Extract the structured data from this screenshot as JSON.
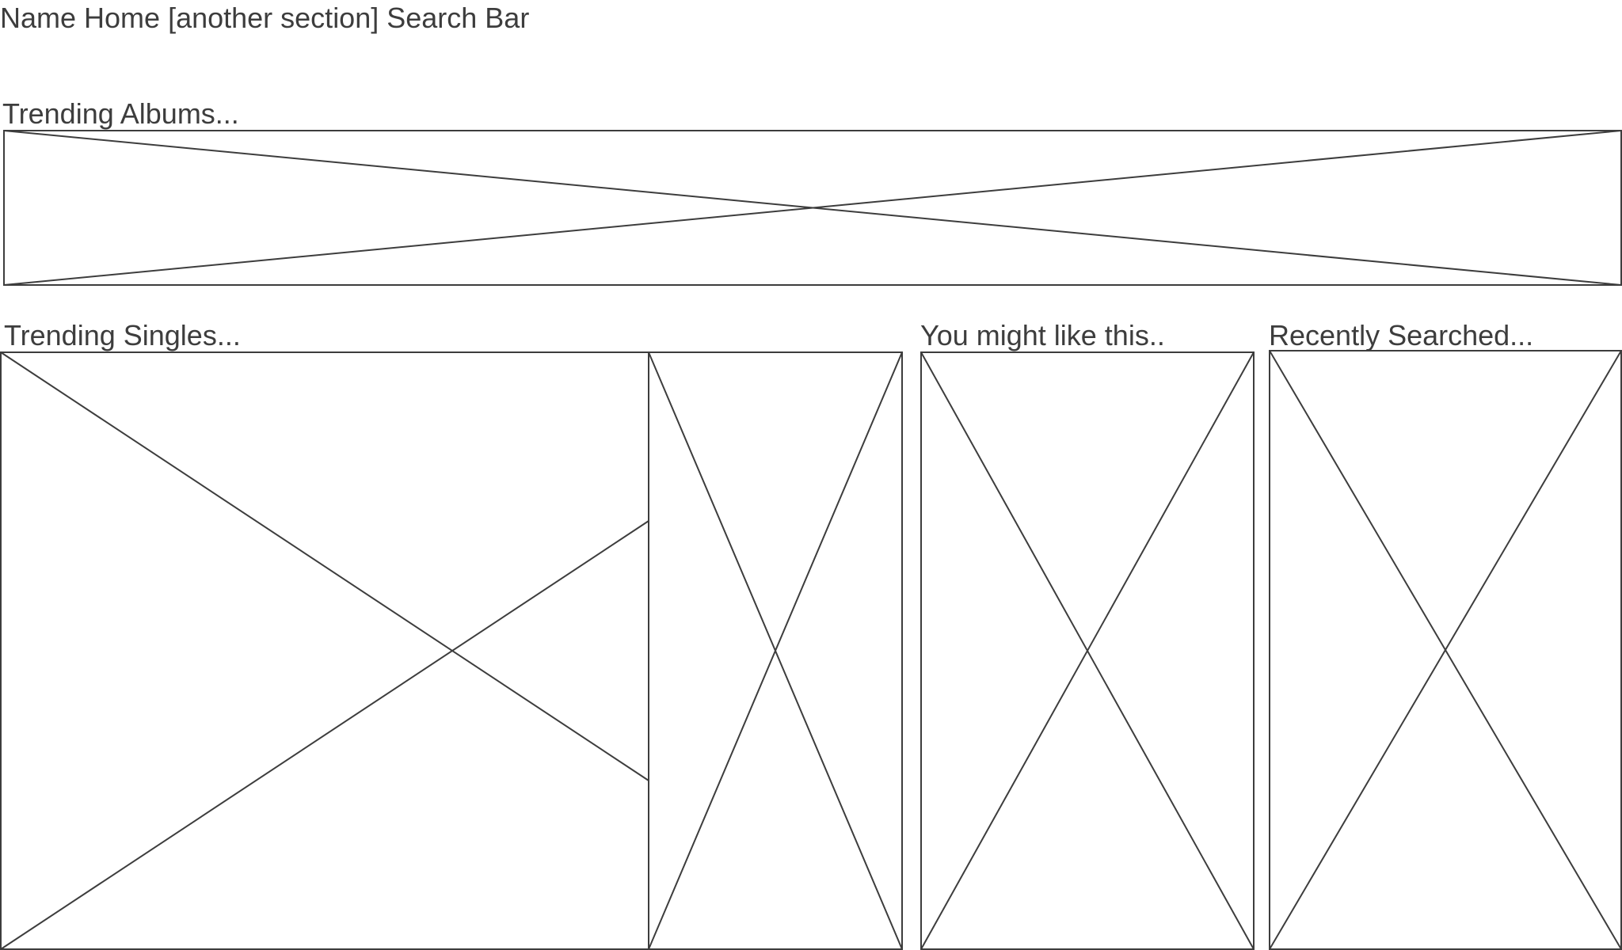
{
  "header": {
    "nav_text": "Name Home [another section] Search Bar"
  },
  "sections": {
    "trending_albums": {
      "title": "Trending Albums..."
    },
    "trending_singles": {
      "title": "Trending Singles..."
    },
    "you_might_like": {
      "title": "You might like this.."
    },
    "recently_searched": {
      "title": "Recently Searched..."
    }
  },
  "colors": {
    "wireframe_stroke": "#3d3d3d",
    "background": "#ffffff"
  },
  "icons": {
    "placeholder": "image-placeholder-x"
  }
}
